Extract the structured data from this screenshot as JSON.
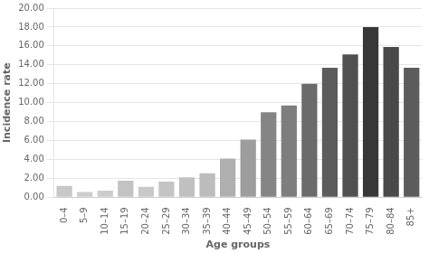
{
  "chart_data": {
    "type": "bar",
    "categories": [
      "0–4",
      "5–9",
      "10–14",
      "15–19",
      "20–24",
      "25–29",
      "30–34",
      "35–39",
      "40–44",
      "45–49",
      "50–54",
      "55–59",
      "60–64",
      "65–69",
      "70–74",
      "75–79",
      "80–84",
      "85+"
    ],
    "values": [
      1.2,
      0.55,
      0.7,
      1.75,
      1.1,
      1.65,
      2.1,
      2.55,
      4.1,
      6.1,
      9.0,
      9.7,
      12.0,
      13.7,
      15.1,
      18.0,
      15.9,
      13.7
    ],
    "colors": [
      "#c8c8c8",
      "#cdcdcd",
      "#cccccc",
      "#c3c3c3",
      "#c9c9c9",
      "#c4c4c4",
      "#c0c0c0",
      "#bcbcbc",
      "#afafaf",
      "#9d9d9d",
      "#858585",
      "#7e7e7e",
      "#6b6b6b",
      "#5c5c5c",
      "#505050",
      "#373737",
      "#494949",
      "#5c5c5c"
    ],
    "xlabel": "Age groups",
    "ylabel": "Incidence rate",
    "ylim": [
      0,
      20.0
    ],
    "yticks": [
      {
        "value": 0.0,
        "label": "0.00"
      },
      {
        "value": 2.0,
        "label": "2.00"
      },
      {
        "value": 4.0,
        "label": "4.00"
      },
      {
        "value": 6.0,
        "label": "6.00"
      },
      {
        "value": 8.0,
        "label": "8.00"
      },
      {
        "value": 10.0,
        "label": "10.00"
      },
      {
        "value": 12.0,
        "label": "12.00"
      },
      {
        "value": 14.0,
        "label": "14.00"
      },
      {
        "value": 16.0,
        "label": "16.00"
      },
      {
        "value": 18.0,
        "label": "18.00"
      },
      {
        "value": 20.0,
        "label": "20.00"
      }
    ],
    "grid": true
  }
}
